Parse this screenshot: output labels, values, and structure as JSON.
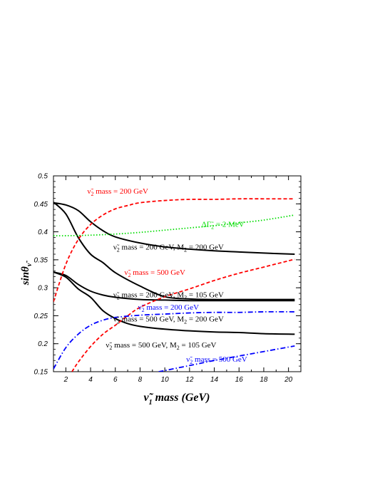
{
  "chart_data": {
    "type": "line",
    "title": "",
    "xlabel": "ν̃₁ mass (GeV)",
    "ylabel": "sinθν̃",
    "xlim": [
      1,
      21
    ],
    "ylim": [
      0.15,
      0.5
    ],
    "x_ticks": [
      2,
      4,
      6,
      8,
      10,
      12,
      14,
      16,
      18,
      20
    ],
    "y_ticks": [
      0.15,
      0.2,
      0.25,
      0.3,
      0.35,
      0.4,
      0.45,
      0.5
    ],
    "x_tick_labels": [
      "2",
      "4",
      "6",
      "8",
      "10",
      "12",
      "14",
      "16",
      "18",
      "20"
    ],
    "y_tick_labels": [
      "0.15",
      "0.2",
      "0.25",
      "0.3",
      "0.35",
      "0.4",
      "0.45",
      "0.5"
    ],
    "grid": false,
    "colors": {
      "black": "#000000",
      "red": "#ff0000",
      "green": "#00dd00",
      "blue": "#0000ff"
    },
    "series": [
      {
        "style": "solid",
        "color": "#000000",
        "x": [
          1,
          2,
          3,
          4,
          5,
          6,
          8,
          10,
          12,
          14,
          16,
          18,
          20.5
        ],
        "y": [
          0.452,
          0.448,
          0.438,
          0.418,
          0.402,
          0.391,
          0.38,
          0.373,
          0.369,
          0.366,
          0.364,
          0.362,
          0.36
        ]
      },
      {
        "style": "solid",
        "color": "#000000",
        "x": [
          1,
          2,
          3,
          4,
          5,
          6,
          8,
          10,
          12,
          14,
          16,
          18,
          20.5
        ],
        "y": [
          0.453,
          0.432,
          0.39,
          0.36,
          0.345,
          0.327,
          0.303,
          0.284,
          0.28,
          0.279,
          0.279,
          0.279,
          0.279
        ]
      },
      {
        "style": "solid",
        "color": "#000000",
        "x": [
          1,
          2,
          3,
          4,
          5,
          6,
          8,
          10,
          12,
          14,
          16,
          18,
          20.5
        ],
        "y": [
          0.328,
          0.322,
          0.306,
          0.294,
          0.287,
          0.283,
          0.279,
          0.278,
          0.277,
          0.277,
          0.277,
          0.277,
          0.277
        ]
      },
      {
        "style": "solid",
        "color": "#000000",
        "x": [
          1,
          2,
          3,
          4,
          5,
          6,
          7,
          8,
          10,
          12,
          14,
          16,
          18,
          20.5
        ],
        "y": [
          0.328,
          0.319,
          0.298,
          0.283,
          0.259,
          0.245,
          0.236,
          0.231,
          0.226,
          0.223,
          0.221,
          0.22,
          0.218,
          0.217
        ]
      },
      {
        "style": "dashed",
        "color": "#ff0000",
        "x": [
          1,
          2,
          3,
          4,
          5,
          6,
          7,
          8,
          10,
          12,
          14,
          16,
          18,
          20.5
        ],
        "y": [
          0.275,
          0.342,
          0.386,
          0.413,
          0.43,
          0.441,
          0.447,
          0.452,
          0.456,
          0.458,
          0.458,
          0.459,
          0.459,
          0.459
        ]
      },
      {
        "style": "dashed",
        "color": "#ff0000",
        "x": [
          2.5,
          3,
          4,
          5,
          6,
          7,
          8,
          10,
          12,
          14,
          16,
          18,
          20.5
        ],
        "y": [
          0.15,
          0.167,
          0.195,
          0.217,
          0.233,
          0.25,
          0.265,
          0.284,
          0.298,
          0.313,
          0.326,
          0.337,
          0.351
        ]
      },
      {
        "style": "dotted",
        "color": "#00dd00",
        "x": [
          1,
          2,
          4,
          6,
          8,
          10,
          12,
          14,
          16,
          18,
          20.5
        ],
        "y": [
          0.393,
          0.393,
          0.394,
          0.396,
          0.399,
          0.403,
          0.407,
          0.411,
          0.416,
          0.421,
          0.43
        ]
      },
      {
        "style": "dashdot",
        "color": "#0000ff",
        "x": [
          1,
          2,
          3,
          4,
          5,
          6,
          8,
          10,
          12,
          14,
          16,
          18,
          20.5
        ],
        "y": [
          0.155,
          0.193,
          0.217,
          0.233,
          0.242,
          0.247,
          0.251,
          0.253,
          0.255,
          0.256,
          0.256,
          0.257,
          0.257
        ]
      },
      {
        "style": "dashdot",
        "color": "#0000ff",
        "x": [
          9.5,
          10,
          12,
          14,
          16,
          18,
          20.5
        ],
        "y": [
          0.15,
          0.152,
          0.161,
          0.17,
          0.178,
          0.186,
          0.196
        ]
      }
    ],
    "annotations": [
      {
        "id": "a1",
        "pre": "ν̃",
        "sub": "2",
        "post": " mass = 200 GeV",
        "color": "#ff0000",
        "x": 6.2,
        "y": 0.468
      },
      {
        "id": "a2",
        "pre": "ΔΓ̃",
        "sub": "2",
        "post": " = 2 MeV",
        "color": "#00dd00",
        "x": 14.7,
        "y": 0.409
      },
      {
        "id": "a3",
        "pre": "ν̃",
        "sub": "2",
        "post": " mass = 200 GeV, M",
        "sub2": "2",
        "post2": " = 200 GeV",
        "color": "#000000",
        "x": 10.3,
        "y": 0.368
      },
      {
        "id": "a4",
        "pre": "ν̃",
        "sub": "2",
        "post": " mass = 500 GeV",
        "color": "#ff0000",
        "x": 9.2,
        "y": 0.323
      },
      {
        "id": "a5",
        "pre": "ν̃",
        "sub": "2",
        "post": " mass = 200 GeV, M",
        "sub2": "2",
        "post2": " = 105 GeV",
        "color": "#000000",
        "x": 10.3,
        "y": 0.283
      },
      {
        "id": "a6",
        "pre": "ν̃",
        "sub": "2",
        "post": " mass = 200 GeV",
        "color": "#0000ff",
        "x": 10.3,
        "y": 0.261
      },
      {
        "id": "a7",
        "pre": "ν̃",
        "sub": "2",
        "post": " mass = 500 GeV, M",
        "sub2": "2",
        "post2": " = 200 GeV",
        "color": "#000000",
        "x": 10.3,
        "y": 0.24
      },
      {
        "id": "a8",
        "pre": "ν̃",
        "sub": "2",
        "post": " mass = 500 GeV, M",
        "sub2": "2",
        "post2": " = 105 GeV",
        "color": "#000000",
        "x": 9.7,
        "y": 0.193
      },
      {
        "id": "a9",
        "pre": "ν̃",
        "sub": "2",
        "post": " mass = 500 GeV",
        "color": "#0000ff",
        "x": 14.2,
        "y": 0.168
      }
    ]
  }
}
